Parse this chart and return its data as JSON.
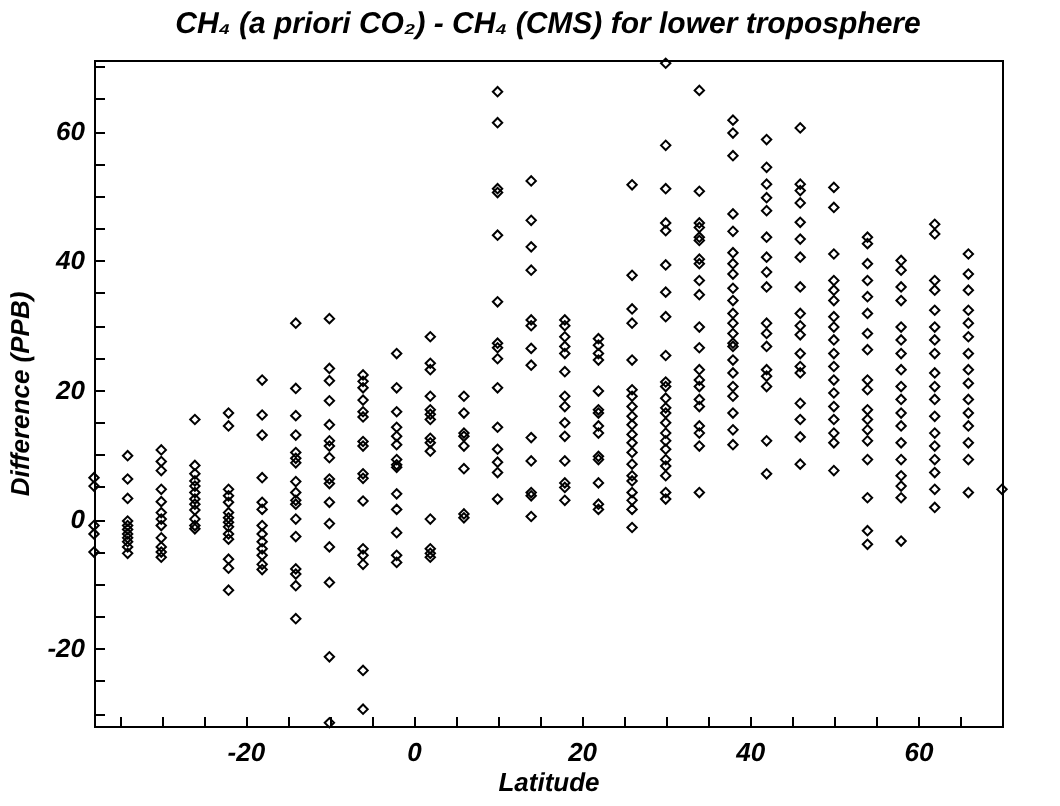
{
  "chart_data": {
    "type": "scatter",
    "title": "CH₄ (a priori CO₂) - CH₄ (CMS) for lower troposphere",
    "xlabel": "Latitude",
    "ylabel": "Difference (PPB)",
    "xlim": [
      -38,
      70
    ],
    "ylim": [
      -32,
      71
    ],
    "xticks": [
      {
        "value": -35,
        "label": null
      },
      {
        "value": -30,
        "label": null
      },
      {
        "value": -25,
        "label": null
      },
      -20,
      {
        "value": -15,
        "label": null
      },
      {
        "value": -10,
        "label": null
      },
      {
        "value": -5,
        "label": null
      },
      0,
      {
        "value": 5,
        "label": null
      },
      {
        "value": 10,
        "label": null
      },
      {
        "value": 15,
        "label": null
      },
      20,
      {
        "value": 25,
        "label": null
      },
      {
        "value": 30,
        "label": null
      },
      {
        "value": 35,
        "label": null
      },
      40,
      {
        "value": 45,
        "label": null
      },
      {
        "value": 50,
        "label": null
      },
      {
        "value": 55,
        "label": null
      },
      60,
      {
        "value": 65,
        "label": null
      }
    ],
    "yticks": [
      {
        "value": -30,
        "label": null
      },
      {
        "value": -25,
        "label": null
      },
      -20,
      {
        "value": -15,
        "label": null
      },
      {
        "value": -10,
        "label": null
      },
      {
        "value": -5,
        "label": null
      },
      0,
      {
        "value": 5,
        "label": null
      },
      {
        "value": 10,
        "label": null
      },
      {
        "value": 15,
        "label": null
      },
      20,
      {
        "value": 25,
        "label": null
      },
      {
        "value": 30,
        "label": null
      },
      {
        "value": 35,
        "label": null
      },
      40,
      {
        "value": 45,
        "label": null
      },
      {
        "value": 50,
        "label": null
      },
      {
        "value": 55,
        "label": null
      },
      60,
      {
        "value": 65,
        "label": null
      },
      {
        "value": 70,
        "label": null
      }
    ],
    "grid": false,
    "legend": false,
    "marker": "diamond",
    "series": [
      {
        "color": "#000000",
        "x": [
          -38,
          -38,
          -38,
          -38,
          -38,
          -34,
          -34,
          -34,
          -34,
          -34,
          -34,
          -34,
          -34,
          -34,
          -34,
          -34,
          -30,
          -30,
          -30,
          -30,
          -30,
          -30,
          -30,
          -30,
          -30,
          -30,
          -30,
          -30,
          -26,
          -26,
          -26,
          -26,
          -26,
          -26,
          -26,
          -26,
          -26,
          -26,
          -26,
          -26,
          -22,
          -22,
          -22,
          -22,
          -22,
          -22,
          -22,
          -22,
          -22,
          -22,
          -22,
          -22,
          -22,
          -22,
          -18,
          -18,
          -18,
          -18,
          -18,
          -18,
          -18,
          -18,
          -18,
          -18,
          -18,
          -18,
          -18,
          -14,
          -14,
          -14,
          -14,
          -14,
          -14,
          -14,
          -14,
          -14,
          -14,
          -14,
          -14,
          -14,
          -14,
          -14,
          -14,
          -14,
          -10,
          -10,
          -10,
          -10,
          -10,
          -10,
          -10,
          -10,
          -10,
          -10,
          -10,
          -10,
          -10,
          -10,
          -10,
          -10,
          -6,
          -6,
          -6,
          -6,
          -6,
          -6,
          -6,
          -6,
          -6,
          -6,
          -6,
          -6,
          -6,
          -6,
          -6,
          -6,
          -2,
          -2,
          -2,
          -2,
          -2,
          -2,
          -2,
          -2,
          -2,
          -2,
          -2,
          -2,
          -2,
          -2,
          2,
          2,
          2,
          2,
          2,
          2,
          2,
          2,
          2,
          2,
          2,
          2,
          2,
          2,
          6,
          6,
          6,
          6,
          6,
          6,
          6,
          6,
          10,
          10,
          10,
          10,
          10,
          10,
          10,
          10,
          10,
          10,
          10,
          10,
          10,
          10,
          10,
          14,
          14,
          14,
          14,
          14,
          14,
          14,
          14,
          14,
          14,
          14,
          14,
          14,
          18,
          18,
          18,
          18,
          18,
          18,
          18,
          18,
          18,
          18,
          18,
          18,
          18,
          18,
          22,
          22,
          22,
          22,
          22,
          22,
          22,
          22,
          22,
          22,
          22,
          22,
          22,
          22,
          26,
          26,
          26,
          26,
          26,
          26,
          26,
          26,
          26,
          26,
          26,
          26,
          26,
          26,
          26,
          26,
          26,
          26,
          26,
          26,
          30,
          30,
          30,
          30,
          30,
          30,
          30,
          30,
          30,
          30,
          30,
          30,
          30,
          30,
          30,
          30,
          30,
          30,
          30,
          30,
          30,
          30,
          30,
          34,
          34,
          34,
          34,
          34,
          34,
          34,
          34,
          34,
          34,
          34,
          34,
          34,
          34,
          34,
          34,
          34,
          34,
          34,
          34,
          34,
          38,
          38,
          38,
          38,
          38,
          38,
          38,
          38,
          38,
          38,
          38,
          38,
          38,
          38,
          38,
          38,
          38,
          38,
          38,
          38,
          38,
          38,
          42,
          42,
          42,
          42,
          42,
          42,
          42,
          42,
          42,
          42,
          42,
          42,
          42,
          42,
          42,
          42,
          42,
          46,
          46,
          46,
          46,
          46,
          46,
          46,
          46,
          46,
          46,
          46,
          46,
          46,
          46,
          46,
          46,
          46,
          46,
          50,
          50,
          50,
          50,
          50,
          50,
          50,
          50,
          50,
          50,
          50,
          50,
          50,
          50,
          50,
          50,
          50,
          50,
          54,
          54,
          54,
          54,
          54,
          54,
          54,
          54,
          54,
          54,
          54,
          54,
          54,
          54,
          54,
          54,
          54,
          54,
          58,
          58,
          58,
          58,
          58,
          58,
          58,
          58,
          58,
          58,
          58,
          58,
          58,
          58,
          58,
          58,
          58,
          58,
          62,
          62,
          62,
          62,
          62,
          62,
          62,
          62,
          62,
          62,
          62,
          62,
          62,
          62,
          62,
          62,
          62,
          62,
          66,
          66,
          66,
          66,
          66,
          66,
          66,
          66,
          66,
          66,
          66,
          66,
          66,
          66,
          66,
          70
        ],
        "values": [
          6.4,
          5.1,
          -1.0,
          -2.3,
          -5.1,
          9.8,
          6.2,
          3.2,
          -0.3,
          -1.0,
          -1.6,
          -2.3,
          -2.9,
          -3.5,
          -4.3,
          -5.3,
          10.7,
          8.9,
          7.5,
          4.6,
          2.7,
          1.0,
          0,
          -1.0,
          -2.9,
          -4.3,
          -5.1,
          -5.9,
          15.4,
          8.3,
          7.0,
          5.9,
          5.1,
          4.1,
          3.1,
          2.3,
          1.4,
          0,
          -1.0,
          -1.5,
          16.4,
          14.4,
          4.6,
          3.6,
          2.6,
          1.0,
          0.2,
          -0.5,
          -1.2,
          -2.3,
          -3.1,
          -6.2,
          -7.6,
          -11.0,
          21.5,
          16.1,
          13.0,
          6.4,
          2.6,
          1.5,
          -1.0,
          -2.3,
          -3.5,
          -4.6,
          -5.6,
          -7.0,
          -7.8,
          30.3,
          20.2,
          16.0,
          13.0,
          10.3,
          9.4,
          8.7,
          5.8,
          4.1,
          2.9,
          2.3,
          0,
          -2.7,
          -7.7,
          -8.5,
          -10.3,
          -15.4,
          31.0,
          23.3,
          21.4,
          18.3,
          14.6,
          12.1,
          11.3,
          9.5,
          6.2,
          5.5,
          2.6,
          -0.7,
          -4.3,
          -9.8,
          -21.3,
          -31.5,
          22.3,
          21.3,
          20.3,
          18.4,
          16.6,
          15.8,
          12.0,
          11.3,
          7.0,
          6.3,
          2.8,
          -4.6,
          -5.6,
          -7.0,
          -23.4,
          -29.4,
          25.6,
          20.3,
          16.6,
          14.2,
          12.8,
          11.5,
          9.2,
          8.4,
          8.0,
          3.9,
          1.5,
          -2.1,
          -5.6,
          -6.7,
          28.2,
          24.1,
          23.1,
          19.0,
          16.9,
          16.2,
          15.4,
          12.5,
          11.8,
          10.5,
          0,
          -4.6,
          -5.3,
          -5.9,
          19.0,
          16.4,
          13.3,
          12.8,
          11.3,
          7.8,
          0.8,
          0.2,
          66.1,
          61.3,
          51.1,
          50.5,
          43.9,
          33.6,
          27.2,
          26.5,
          24.8,
          20.3,
          14.2,
          10.8,
          8.8,
          7.2,
          3.1,
          52.3,
          46.2,
          42.1,
          38.5,
          30.8,
          29.9,
          26.4,
          23.8,
          12.6,
          9.0,
          4.1,
          3.6,
          0.4,
          30.8,
          29.9,
          28.2,
          26.7,
          25.6,
          22.8,
          19.0,
          17.4,
          14.9,
          12.8,
          9.0,
          5.6,
          4.9,
          2.9,
          27.9,
          26.9,
          25.6,
          24.6,
          19.8,
          16.9,
          16.4,
          14.4,
          13.3,
          9.7,
          9.2,
          5.6,
          2.3,
          1.5,
          51.7,
          37.7,
          32.5,
          30.3,
          24.6,
          20.0,
          19.0,
          17.4,
          15.9,
          14.6,
          13.1,
          11.8,
          10.3,
          8.5,
          6.7,
          5.9,
          4.1,
          2.9,
          1.5,
          -1.3,
          70.5,
          57.8,
          51.1,
          45.8,
          44.6,
          39.3,
          35.1,
          31.3,
          25.3,
          21.2,
          20.5,
          18.7,
          17.2,
          16.4,
          14.9,
          13.3,
          12.1,
          10.8,
          9.2,
          8.2,
          6.7,
          4.1,
          3.1,
          66.3,
          50.7,
          45.8,
          45.1,
          43.6,
          43.1,
          40.2,
          39.5,
          36.9,
          34.7,
          29.7,
          26.5,
          23.1,
          21.5,
          20.5,
          18.5,
          17.4,
          14.4,
          13.3,
          11.3,
          4.1,
          61.7,
          59.7,
          56.2,
          47.2,
          44.5,
          41.2,
          39.5,
          37.9,
          35.7,
          33.8,
          31.8,
          30.3,
          28.7,
          27.2,
          26.7,
          24.6,
          22.6,
          20.5,
          19.0,
          16.4,
          13.8,
          11.5,
          58.7,
          54.4,
          51.8,
          49.7,
          47.7,
          43.6,
          40.5,
          38.2,
          35.9,
          30.3,
          28.7,
          26.7,
          23.1,
          22.1,
          20.5,
          12.1,
          7.0,
          60.5,
          51.8,
          50.8,
          48.9,
          45.9,
          43.3,
          40.5,
          35.9,
          31.8,
          29.9,
          28.5,
          25.6,
          23.6,
          22.6,
          17.9,
          15.4,
          12.7,
          8.5,
          51.3,
          48.2,
          41.0,
          36.9,
          35.4,
          33.8,
          31.3,
          29.7,
          27.7,
          25.6,
          23.6,
          21.5,
          19.5,
          17.4,
          15.4,
          13.3,
          11.8,
          7.5,
          43.6,
          42.6,
          39.5,
          36.9,
          34.4,
          31.8,
          28.7,
          26.2,
          21.5,
          20.0,
          16.9,
          15.4,
          13.8,
          12.1,
          9.2,
          3.3,
          -1.8,
          -3.9,
          40.0,
          38.5,
          35.9,
          33.8,
          29.7,
          27.7,
          25.6,
          23.1,
          20.5,
          18.5,
          16.4,
          14.4,
          11.8,
          9.2,
          6.7,
          5.1,
          3.3,
          -3.4,
          45.6,
          44.1,
          36.9,
          35.4,
          32.3,
          29.7,
          27.7,
          25.6,
          22.6,
          20.5,
          18.5,
          15.9,
          13.3,
          11.3,
          9.2,
          7.2,
          4.6,
          1.8,
          41.0,
          37.9,
          35.4,
          32.3,
          30.3,
          28.2,
          25.6,
          23.1,
          21.0,
          18.5,
          16.4,
          14.4,
          11.8,
          9.2,
          4.1,
          4.6
        ]
      }
    ]
  }
}
